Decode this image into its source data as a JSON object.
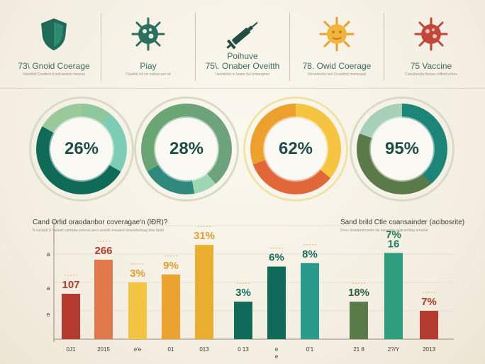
{
  "header": {
    "cards": [
      {
        "icon": "shield-icon",
        "color": "#1f6b58",
        "title": "73\\ Gnoid Coerage",
        "subtitle": "Vannihid Cesldesi d mrhesnied roeseos"
      },
      {
        "icon": "virus-icon",
        "color": "#2d6f5e",
        "title": "Piay",
        "subtitle": "Caanlid nd cm nolbae pet sd"
      },
      {
        "icon": "syringe-icon",
        "color": "#234d43",
        "title": "Poihuve",
        "title2": "75\\. Onaber Oveitth",
        "subtitle": "Vaonikniei to taope dal prstaogmer"
      },
      {
        "icon": "sun-virus-icon",
        "color": "#e4a22b",
        "title": "78. Owid Coerage",
        "subtitle": "Vorsnetoder lsnl Cesoelnd msmeauel"
      },
      {
        "icon": "virus-icon",
        "color": "#c2473a",
        "title": "75 Vaccine",
        "subtitle": "Caniuheoda hlesos coltinid orhes"
      }
    ]
  },
  "donuts": [
    {
      "label": "26%",
      "value": 26
    },
    {
      "label": "28%",
      "value": 28
    },
    {
      "label": "62%",
      "value": 62
    },
    {
      "label": "95%",
      "value": 95
    }
  ],
  "bar_section": {
    "left_title": "Cand Orlid oraodanbor coveragae'n (lĐR)?",
    "left_subtitle": "N curduld S hadaiel canbotw proinus anco aonolh tonaaed dolaobbniniag bilis Sedd",
    "right_title": "Sand brild Ctle coansainder (acibosrite)",
    "right_subtitle": "Dnos dolsaborlrcoelre Ibi bansnide oratcanrbng nrnotnd"
  },
  "chart_data": {
    "type": "bar",
    "title": "Cand Orlid oraodanbor coveragae'n (lĐR)?",
    "xlabel": "",
    "ylabel": "",
    "yticks": [
      "a",
      "a",
      "e"
    ],
    "ylim": [
      0,
      100
    ],
    "grid": true,
    "bars": [
      {
        "category": "0J1",
        "value": 40,
        "label": "107",
        "color": "#b23a2e",
        "label_color": "#b23a2e"
      },
      {
        "category": "2015",
        "value": 70,
        "label": "266",
        "color": "#e07a4a",
        "label_color": "#b23a2e"
      },
      {
        "category": "e'e",
        "value": 50,
        "label": "3%",
        "color": "#f4c542",
        "label_color": "#e3a02b"
      },
      {
        "category": "01",
        "value": 57,
        "label": "9%",
        "color": "#e9a32e",
        "label_color": "#e3a02b"
      },
      {
        "category": "013",
        "value": 83,
        "label": "31%",
        "color": "#e9ae2e",
        "label_color": "#e3a02b"
      },
      {
        "category": "0 13",
        "value": 33,
        "label": "3%",
        "color": "#106a5a",
        "label_color": "#106a5a"
      },
      {
        "category": "e\ne",
        "value": 64,
        "label": "6%",
        "color": "#106a5a",
        "label_color": "#106a5a"
      },
      {
        "category": "0'1",
        "value": 67,
        "label": "8%",
        "color": "#2a9a8c",
        "label_color": "#1d6b5e"
      },
      {
        "category": "21 8",
        "value": 33,
        "label": "18%",
        "color": "#5b7a49",
        "label_color": "#2f5a3c"
      },
      {
        "category": "2?/Y",
        "value": 76,
        "label": "7%\n16",
        "color": "#2f9e7e",
        "label_color": "#1d7a5c"
      },
      {
        "category": "2013",
        "value": 25,
        "label": "7%",
        "color": "#b23a2e",
        "label_color": "#b23a2e"
      }
    ]
  }
}
